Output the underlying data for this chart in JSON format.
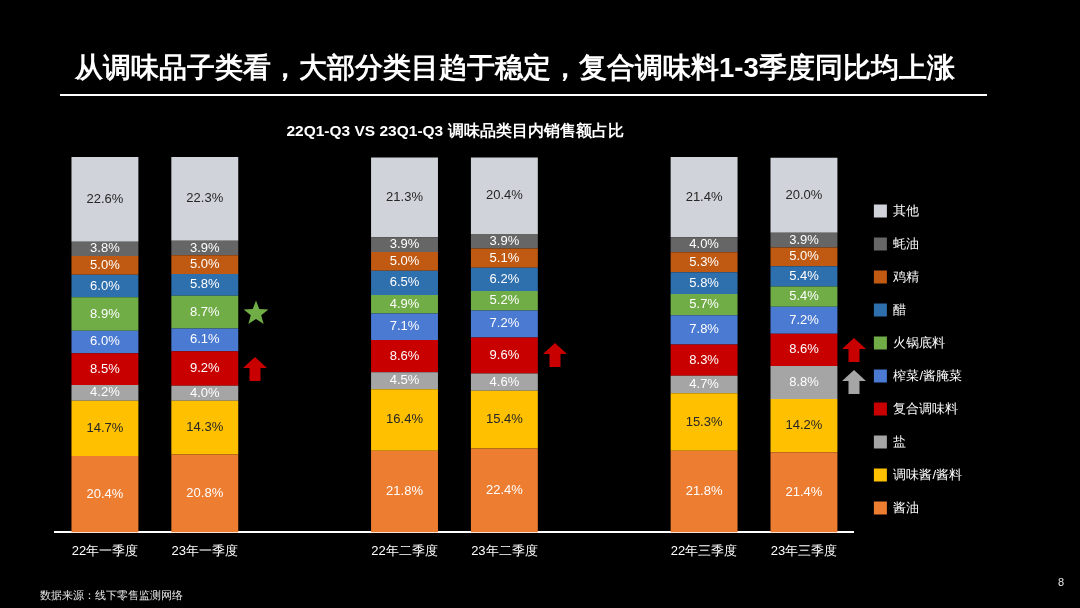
{
  "chart_data": {
    "type": "bar",
    "title": "从调味品子类看，大部分类目趋于稳定，复合调味料1-3季度同比均上涨",
    "subtitle": "22Q1-Q3 VS 23Q1-Q3 调味品类目内销售额占比",
    "categories": [
      "22年一季度",
      "23年一季度",
      null,
      "22年二季度",
      "23年二季度",
      null,
      "22年三季度",
      "23年三季度"
    ],
    "stacked": true,
    "legend": "right",
    "series": [
      {
        "name": "酱油",
        "color": "#ed7d31",
        "values": [
          20.4,
          20.8,
          null,
          21.8,
          22.4,
          null,
          21.8,
          21.4
        ],
        "value_labels": [
          "20.4%",
          "20.8%",
          null,
          "21.8%",
          "22.4%",
          null,
          "21.8%",
          "21.4%"
        ]
      },
      {
        "name": "调味酱/酱料",
        "color": "#ffc000",
        "values": [
          14.7,
          14.3,
          null,
          16.4,
          15.4,
          null,
          15.3,
          14.2
        ],
        "value_labels": [
          "14.7%",
          "14.3%",
          null,
          "16.4%",
          "15.4%",
          null,
          "15.3%",
          "14.2%"
        ]
      },
      {
        "name": "盐",
        "color": "#a5a5a5",
        "values": [
          4.2,
          4.0,
          null,
          4.5,
          4.6,
          null,
          4.7,
          8.8
        ],
        "value_labels": [
          "4.2%",
          "4.0%",
          null,
          "4.5%",
          "4.6%",
          null,
          "4.7%",
          "8.8%"
        ]
      },
      {
        "name": "复合调味料",
        "color": "#c80000",
        "values": [
          8.5,
          9.2,
          null,
          8.6,
          9.6,
          null,
          8.3,
          8.6
        ],
        "value_labels": [
          "8.5%",
          "9.2%",
          null,
          "8.6%",
          "9.6%",
          null,
          "8.3%",
          "8.6%"
        ]
      },
      {
        "name": "榨菜/酱腌菜",
        "color": "#4a7ad2",
        "values": [
          6.0,
          6.1,
          null,
          7.1,
          7.2,
          null,
          7.8,
          7.2
        ],
        "value_labels": [
          "6.0%",
          "6.1%",
          null,
          "7.1%",
          "7.2%",
          null,
          "7.8%",
          "7.2%"
        ]
      },
      {
        "name": "火锅底料",
        "color": "#70ad47",
        "values": [
          8.9,
          8.7,
          null,
          4.9,
          5.2,
          null,
          5.7,
          5.4
        ],
        "value_labels": [
          "8.9%",
          "8.7%",
          null,
          "4.9%",
          "5.2%",
          null,
          "5.7%",
          "5.4%"
        ]
      },
      {
        "name": "醋",
        "color": "#2e6fad",
        "values": [
          6.0,
          5.8,
          null,
          6.5,
          6.2,
          null,
          5.8,
          5.4
        ],
        "value_labels": [
          "6.0%",
          "5.8%",
          null,
          "6.5%",
          "6.2%",
          null,
          "5.8%",
          "5.4%"
        ]
      },
      {
        "name": "鸡精",
        "color": "#c05a12",
        "values": [
          5.0,
          5.0,
          null,
          5.0,
          5.1,
          null,
          5.3,
          5.0
        ],
        "value_labels": [
          "5.0%",
          "5.0%",
          null,
          "5.0%",
          "5.1%",
          null,
          "5.3%",
          "5.0%"
        ]
      },
      {
        "name": "蚝油",
        "color": "#666666",
        "values": [
          3.8,
          3.9,
          null,
          3.9,
          3.9,
          null,
          4.0,
          3.9
        ],
        "value_labels": [
          "3.8%",
          "3.9%",
          null,
          "3.9%",
          "3.9%",
          null,
          "4.0%",
          "3.9%"
        ]
      },
      {
        "name": "其他",
        "color": "#d0d3da",
        "values": [
          22.6,
          22.3,
          null,
          21.3,
          20.4,
          null,
          21.4,
          20.0
        ],
        "value_labels": [
          "22.6%",
          "22.3%",
          null,
          "21.3%",
          "20.4%",
          null,
          "21.4%",
          "20.0%"
        ]
      }
    ],
    "annotations": [
      "数据来源：线下零售监测网络",
      "8"
    ]
  }
}
